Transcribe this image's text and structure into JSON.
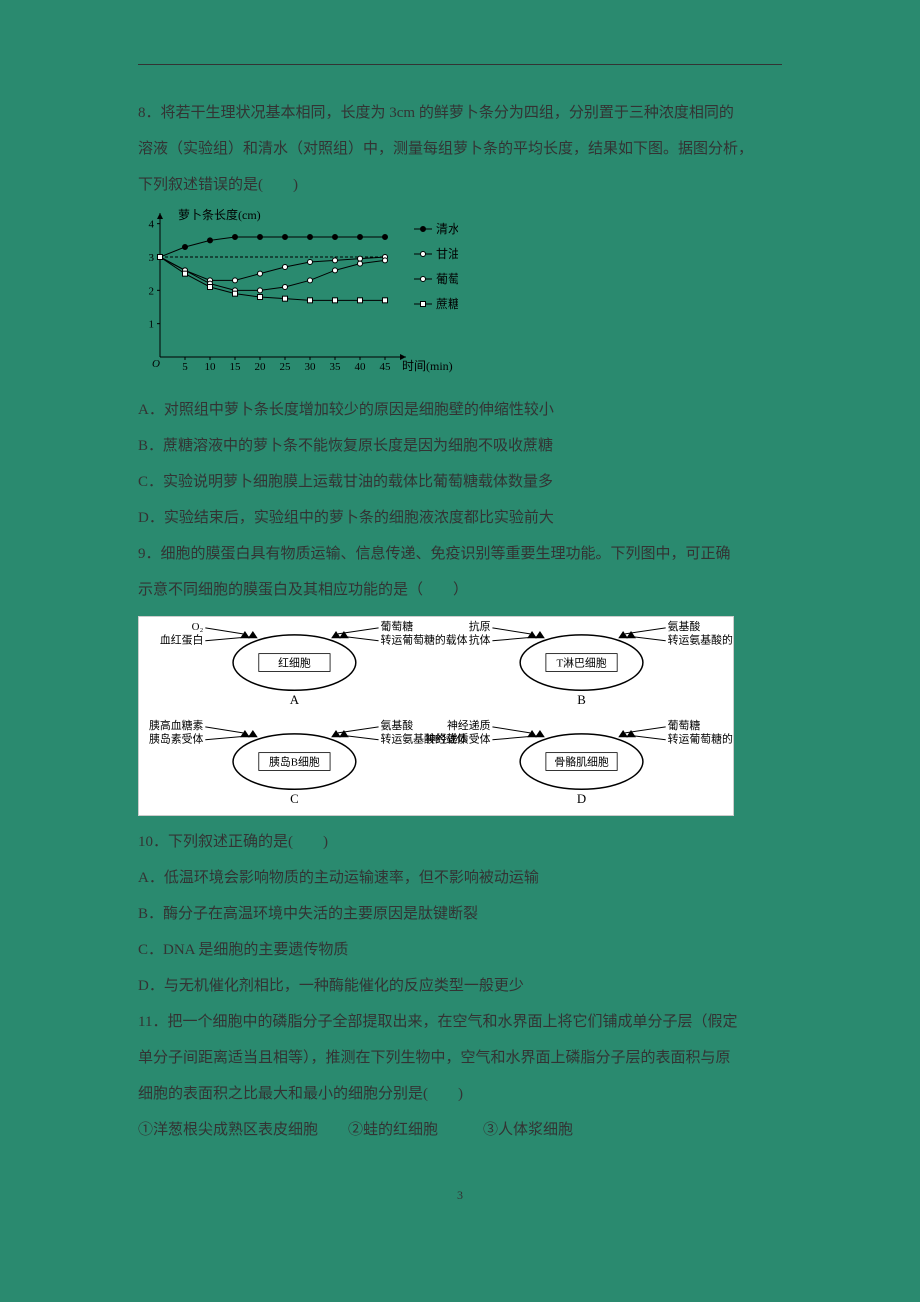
{
  "page_number": "3",
  "q8": {
    "stem1": "8．将若干生理状况基本相同，长度为 3cm 的鲜萝卜条分为四组，分别置于三种浓度相同的",
    "stem2": "溶液（实验组）和清水（对照组）中，测量每组萝卜条的平均长度，结果如下图。据图分析，",
    "stem3": "下列叙述错误的是(　　)",
    "optA": "A．对照组中萝卜条长度增加较少的原因是细胞壁的伸缩性较小",
    "optB": "B．蔗糖溶液中的萝卜条不能恢复原长度是因为细胞不吸收蔗糖",
    "optC": "C．实验说明萝卜细胞膜上运载甘油的载体比葡萄糖载体数量多",
    "optD": "D．实验结束后，实验组中的萝卜条的细胞液浓度都比实验前大"
  },
  "q9": {
    "stem1": "9．细胞的膜蛋白具有物质运输、信息传递、免疫识别等重要生理功能。下列图中，可正确",
    "stem2": "示意不同细胞的膜蛋白及其相应功能的是（　　）"
  },
  "q10": {
    "stem": "10．下列叙述正确的是(　　)",
    "optA": "A．低温环境会影响物质的主动运输速率，但不影响被动运输",
    "optB": "B．酶分子在高温环境中失活的主要原因是肽键断裂",
    "optC": "C．DNA 是细胞的主要遗传物质",
    "optD": "D．与无机催化剂相比，一种酶能催化的反应类型一般更少"
  },
  "q11": {
    "stem1": "11．把一个细胞中的磷脂分子全部提取出来，在空气和水界面上将它们铺成单分子层（假定",
    "stem2": "单分子间距离适当且相等），推测在下列生物中，空气和水界面上磷脂分子层的表面积与原",
    "stem3": "细胞的表面积之比最大和最小的细胞分别是(　　)",
    "items": "①洋葱根尖成熟区表皮细胞　　②蛙的红细胞　　　③人体浆细胞"
  },
  "chart": {
    "type": "line",
    "ylabel": "萝卜条长度(cm)",
    "xlabel": "时间(min)",
    "xticks": [
      5,
      10,
      15,
      20,
      25,
      30,
      35,
      40,
      45
    ],
    "yticks": [
      1,
      2,
      3,
      4
    ],
    "xlim": [
      0,
      48
    ],
    "ylim": [
      0,
      4.2
    ],
    "background_color": "#2a8a6f",
    "axis_color": "#000000",
    "legend": [
      {
        "label": "清水",
        "marker": "circle-filled"
      },
      {
        "label": "甘油溶液",
        "marker": "circle-open"
      },
      {
        "label": "葡萄糖溶液",
        "marker": "circle-open"
      },
      {
        "label": "蔗糖溶液",
        "marker": "square-open"
      }
    ],
    "series": [
      {
        "name": "清水",
        "marker": "circle-filled",
        "dashed_ref": true,
        "points": [
          [
            0,
            3.0
          ],
          [
            5,
            3.3
          ],
          [
            10,
            3.5
          ],
          [
            15,
            3.6
          ],
          [
            20,
            3.6
          ],
          [
            25,
            3.6
          ],
          [
            30,
            3.6
          ],
          [
            35,
            3.6
          ],
          [
            40,
            3.6
          ],
          [
            45,
            3.6
          ]
        ]
      },
      {
        "name": "甘油溶液",
        "marker": "circle-open",
        "points": [
          [
            0,
            3.0
          ],
          [
            5,
            2.6
          ],
          [
            10,
            2.3
          ],
          [
            15,
            2.3
          ],
          [
            20,
            2.5
          ],
          [
            25,
            2.7
          ],
          [
            30,
            2.85
          ],
          [
            35,
            2.9
          ],
          [
            40,
            2.95
          ],
          [
            45,
            3.0
          ]
        ]
      },
      {
        "name": "葡萄糖溶液",
        "marker": "circle-open",
        "points": [
          [
            0,
            3.0
          ],
          [
            5,
            2.6
          ],
          [
            10,
            2.2
          ],
          [
            15,
            2.0
          ],
          [
            20,
            2.0
          ],
          [
            25,
            2.1
          ],
          [
            30,
            2.3
          ],
          [
            35,
            2.6
          ],
          [
            40,
            2.8
          ],
          [
            45,
            2.9
          ]
        ]
      },
      {
        "name": "蔗糖溶液",
        "marker": "square-open",
        "points": [
          [
            0,
            3.0
          ],
          [
            5,
            2.5
          ],
          [
            10,
            2.1
          ],
          [
            15,
            1.9
          ],
          [
            20,
            1.8
          ],
          [
            25,
            1.75
          ],
          [
            30,
            1.7
          ],
          [
            35,
            1.7
          ],
          [
            40,
            1.7
          ],
          [
            45,
            1.7
          ]
        ]
      }
    ]
  },
  "diagram": {
    "cells": [
      {
        "id": "A",
        "name": "红细胞",
        "left_top": "O₂",
        "left_bottom": "血红蛋白",
        "right_top": "葡萄糖",
        "right_bottom": "转运葡萄糖的载体"
      },
      {
        "id": "B",
        "name": "T淋巴细胞",
        "left_top": "抗原",
        "left_bottom": "抗体",
        "right_top": "氨基酸",
        "right_bottom": "转运氨基酸的载体"
      },
      {
        "id": "C",
        "name": "胰岛B细胞",
        "left_top": "胰高血糖素",
        "left_bottom": "胰岛素受体",
        "right_top": "氨基酸",
        "right_bottom": "转运氨基酸的载体"
      },
      {
        "id": "D",
        "name": "骨骼肌细胞",
        "left_top": "神经递质",
        "left_bottom": "神经递质受体",
        "right_top": "葡萄糖",
        "right_bottom": "转运葡萄糖的载体"
      }
    ]
  }
}
